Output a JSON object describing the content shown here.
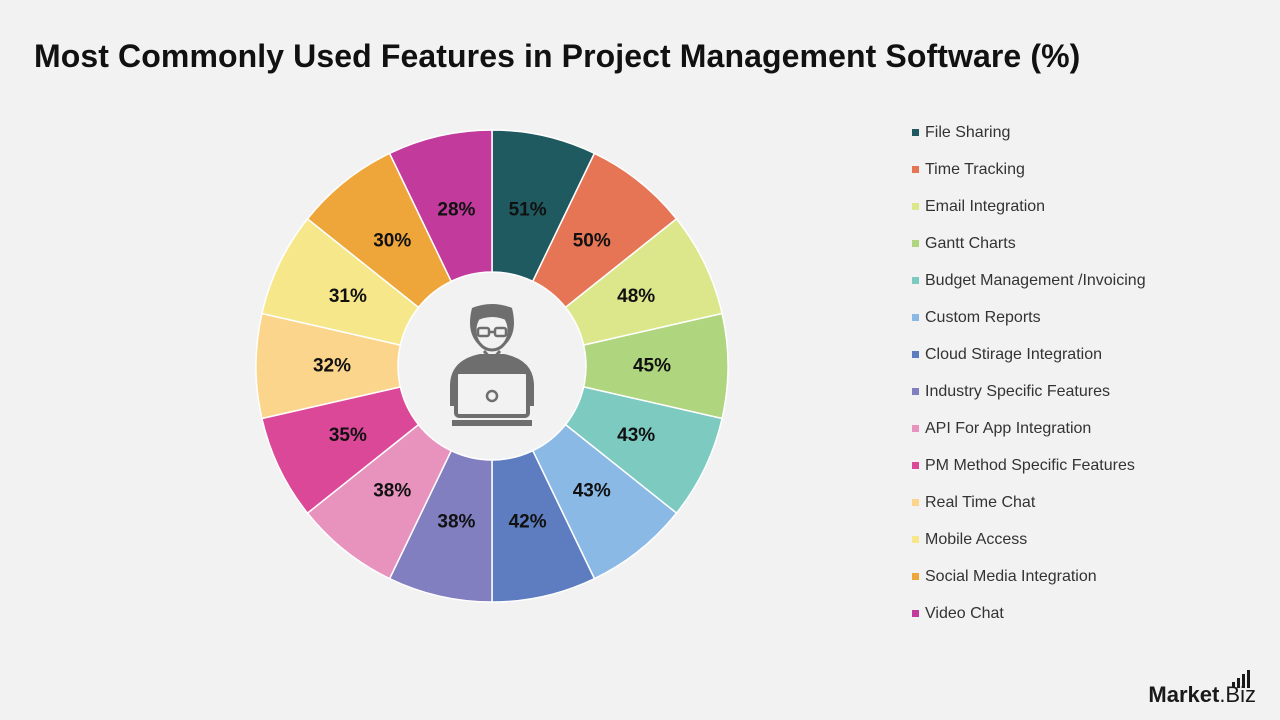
{
  "chart_data": {
    "type": "pie",
    "title": "Most Commonly Used Features in Project Management Software (%)",
    "value_suffix": "%",
    "slices": [
      {
        "label": "File Sharing",
        "value": 51,
        "color": "#1e5a60"
      },
      {
        "label": "Time Tracking",
        "value": 50,
        "color": "#e57555"
      },
      {
        "label": "Email Integration",
        "value": 48,
        "color": "#dbe78a"
      },
      {
        "label": "Gantt Charts",
        "value": 45,
        "color": "#afd67e"
      },
      {
        "label": "Budget Management /Invoicing",
        "value": 43,
        "color": "#7ccac0"
      },
      {
        "label": "Custom Reports",
        "value": 43,
        "color": "#8ab9e5"
      },
      {
        "label": "Cloud Stirage Integration",
        "value": 42,
        "color": "#5d7dc0"
      },
      {
        "label": "Industry Specific Features",
        "value": 38,
        "color": "#817fc0"
      },
      {
        "label": "API For App Integration",
        "value": 38,
        "color": "#e892be"
      },
      {
        "label": "PM Method Specific Features",
        "value": 35,
        "color": "#dc4898"
      },
      {
        "label": "Real Time Chat",
        "value": 32,
        "color": "#fcd58c"
      },
      {
        "label": "Mobile Access",
        "value": 31,
        "color": "#f5e78a"
      },
      {
        "label": "Social Media Integration",
        "value": 30,
        "color": "#eea63a"
      },
      {
        "label": "Video Chat",
        "value": 28,
        "color": "#c13a9c"
      }
    ],
    "legend_position": "right",
    "center_icon": "person-with-laptop-icon"
  },
  "brand": {
    "market": "Market",
    "biz": ".Biz"
  }
}
